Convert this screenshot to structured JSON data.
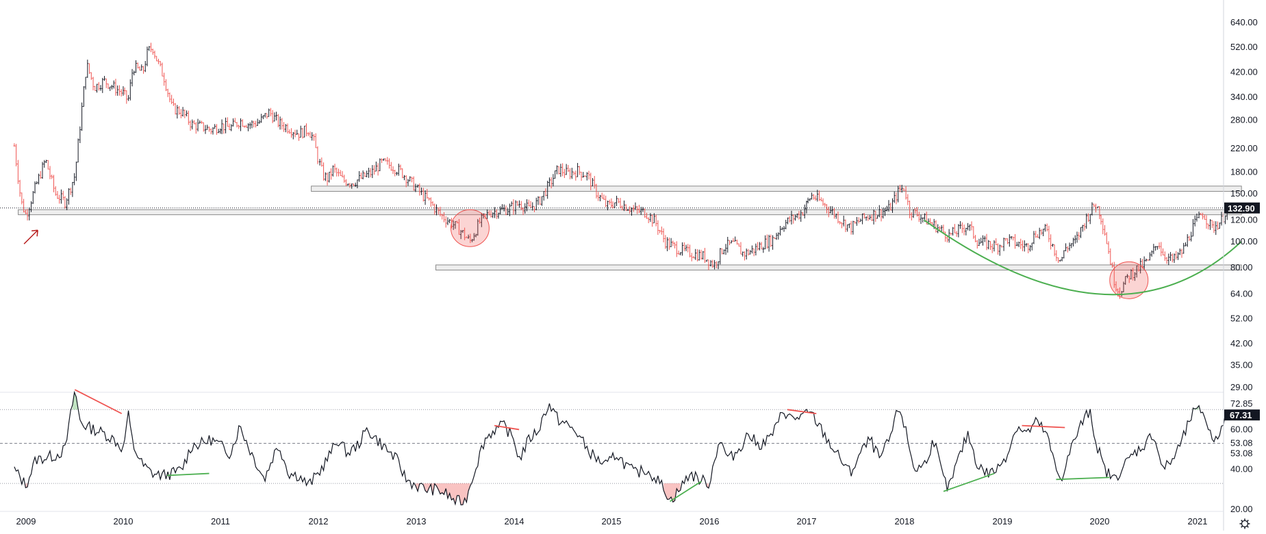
{
  "chart_data": [
    {
      "type": "candlestick",
      "panel": "price",
      "scale": "log",
      "x_labels": [
        "2009",
        "2010",
        "2011",
        "2012",
        "2013",
        "2014",
        "2015",
        "2016",
        "2017",
        "2018",
        "2019",
        "2020",
        "2021"
      ],
      "x_range": [
        2008.88,
        2021.45
      ],
      "y_ticks": [
        "640.00",
        "520.00",
        "420.00",
        "340.00",
        "280.00",
        "220.00",
        "180.00",
        "150.00",
        "120.00",
        "100.00",
        "80.00",
        "64.00",
        "52.00",
        "42.00",
        "35.00",
        "29.00"
      ],
      "ylim": [
        27,
        700
      ],
      "last_value": "132.90",
      "up_color": "#131722",
      "down_color": "#ef5350",
      "ohlc_anchor_points": [
        [
          2008.88,
          225
        ],
        [
          2008.95,
          140
        ],
        [
          2009.0,
          125
        ],
        [
          2009.1,
          160
        ],
        [
          2009.2,
          200
        ],
        [
          2009.3,
          150
        ],
        [
          2009.4,
          140
        ],
        [
          2009.5,
          175
        ],
        [
          2009.55,
          260
        ],
        [
          2009.62,
          450
        ],
        [
          2009.7,
          370
        ],
        [
          2009.8,
          390
        ],
        [
          2009.9,
          370
        ],
        [
          2010.0,
          350
        ],
        [
          2010.05,
          330
        ],
        [
          2010.1,
          440
        ],
        [
          2010.2,
          420
        ],
        [
          2010.25,
          500
        ],
        [
          2010.3,
          520
        ],
        [
          2010.35,
          460
        ],
        [
          2010.42,
          400
        ],
        [
          2010.5,
          310
        ],
        [
          2010.6,
          300
        ],
        [
          2010.7,
          270
        ],
        [
          2010.8,
          265
        ],
        [
          2010.9,
          258
        ],
        [
          2011.0,
          268
        ],
        [
          2011.1,
          262
        ],
        [
          2011.2,
          278
        ],
        [
          2011.3,
          270
        ],
        [
          2011.4,
          276
        ],
        [
          2011.5,
          300
        ],
        [
          2011.6,
          272
        ],
        [
          2011.7,
          262
        ],
        [
          2011.8,
          250
        ],
        [
          2011.9,
          258
        ],
        [
          2011.95,
          240
        ],
        [
          2012.0,
          200
        ],
        [
          2012.05,
          175
        ],
        [
          2012.1,
          170
        ],
        [
          2012.15,
          185
        ],
        [
          2012.25,
          168
        ],
        [
          2012.35,
          165
        ],
        [
          2012.45,
          172
        ],
        [
          2012.55,
          180
        ],
        [
          2012.65,
          195
        ],
        [
          2012.75,
          190
        ],
        [
          2012.85,
          180
        ],
        [
          2012.95,
          165
        ],
        [
          2013.05,
          150
        ],
        [
          2013.15,
          138
        ],
        [
          2013.25,
          125
        ],
        [
          2013.35,
          118
        ],
        [
          2013.45,
          110
        ],
        [
          2013.55,
          100
        ],
        [
          2013.65,
          118
        ],
        [
          2013.75,
          128
        ],
        [
          2013.85,
          130
        ],
        [
          2013.95,
          132
        ],
        [
          2014.05,
          138
        ],
        [
          2014.15,
          132
        ],
        [
          2014.25,
          140
        ],
        [
          2014.35,
          160
        ],
        [
          2014.45,
          185
        ],
        [
          2014.55,
          178
        ],
        [
          2014.65,
          182
        ],
        [
          2014.75,
          175
        ],
        [
          2014.85,
          150
        ],
        [
          2014.95,
          135
        ],
        [
          2015.05,
          140
        ],
        [
          2015.15,
          135
        ],
        [
          2015.25,
          130
        ],
        [
          2015.35,
          128
        ],
        [
          2015.45,
          118
        ],
        [
          2015.55,
          100
        ],
        [
          2015.65,
          95
        ],
        [
          2015.75,
          92
        ],
        [
          2015.85,
          90
        ],
        [
          2015.95,
          88
        ],
        [
          2016.05,
          82
        ],
        [
          2016.15,
          96
        ],
        [
          2016.25,
          98
        ],
        [
          2016.35,
          90
        ],
        [
          2016.45,
          93
        ],
        [
          2016.55,
          98
        ],
        [
          2016.65,
          102
        ],
        [
          2016.75,
          115
        ],
        [
          2016.85,
          122
        ],
        [
          2016.95,
          128
        ],
        [
          2017.05,
          148
        ],
        [
          2017.15,
          140
        ],
        [
          2017.25,
          130
        ],
        [
          2017.35,
          120
        ],
        [
          2017.45,
          112
        ],
        [
          2017.55,
          120
        ],
        [
          2017.65,
          125
        ],
        [
          2017.75,
          128
        ],
        [
          2017.85,
          132
        ],
        [
          2017.95,
          155
        ],
        [
          2018.0,
          158
        ],
        [
          2018.05,
          130
        ],
        [
          2018.15,
          125
        ],
        [
          2018.25,
          118
        ],
        [
          2018.35,
          112
        ],
        [
          2018.45,
          105
        ],
        [
          2018.55,
          110
        ],
        [
          2018.65,
          115
        ],
        [
          2018.75,
          100
        ],
        [
          2018.85,
          98
        ],
        [
          2018.95,
          96
        ],
        [
          2019.05,
          102
        ],
        [
          2019.15,
          98
        ],
        [
          2019.25,
          96
        ],
        [
          2019.35,
          108
        ],
        [
          2019.45,
          110
        ],
        [
          2019.55,
          90
        ],
        [
          2019.6,
          85
        ],
        [
          2019.65,
          95
        ],
        [
          2019.75,
          100
        ],
        [
          2019.85,
          120
        ],
        [
          2019.95,
          138
        ],
        [
          2020.0,
          128
        ],
        [
          2020.05,
          110
        ],
        [
          2020.15,
          72
        ],
        [
          2020.2,
          65
        ],
        [
          2020.3,
          75
        ],
        [
          2020.4,
          80
        ],
        [
          2020.5,
          85
        ],
        [
          2020.6,
          100
        ],
        [
          2020.65,
          90
        ],
        [
          2020.75,
          85
        ],
        [
          2020.85,
          92
        ],
        [
          2020.95,
          112
        ],
        [
          2021.05,
          128
        ],
        [
          2021.15,
          112
        ],
        [
          2021.25,
          120
        ],
        [
          2021.3,
          132.9
        ]
      ],
      "annotations": {
        "resistance_zones": [
          {
            "from": 2011.93,
            "to": 2021.45,
            "low": 153,
            "high": 160
          },
          {
            "from": 2008.92,
            "to": 2021.45,
            "low": 125.5,
            "high": 131
          },
          {
            "from": 2013.2,
            "to": 2021.45,
            "low": 78.5,
            "high": 82
          }
        ],
        "highlight_circles": [
          {
            "x": 2013.55,
            "y": 112
          },
          {
            "x": 2020.3,
            "y": 72
          }
        ],
        "arc": {
          "from": [
            2018.2,
            120
          ],
          "bottom": [
            2020.0,
            64
          ],
          "to": [
            2021.45,
            100
          ],
          "color": "#4caf50"
        },
        "arrow": {
          "at": [
            2009.05,
            118
          ],
          "color": "#b71c1c"
        }
      }
    },
    {
      "type": "line",
      "panel": "oscillator",
      "y_ticks": [
        "72.85",
        "72.85",
        "67.31",
        "60.00",
        "53.08",
        "53.08",
        "40.00",
        "20.00"
      ],
      "ylim": [
        17,
        80
      ],
      "last_value": "67.31",
      "reference_levels": [
        70,
        53.08,
        33
      ],
      "oscillator_anchor_points": [
        [
          2008.88,
          40
        ],
        [
          2009.0,
          32
        ],
        [
          2009.1,
          45
        ],
        [
          2009.3,
          47
        ],
        [
          2009.4,
          50
        ],
        [
          2009.5,
          80
        ],
        [
          2009.55,
          65
        ],
        [
          2009.6,
          62
        ],
        [
          2009.7,
          60
        ],
        [
          2009.8,
          58
        ],
        [
          2009.9,
          55
        ],
        [
          2010.0,
          50
        ],
        [
          2010.05,
          68
        ],
        [
          2010.1,
          52
        ],
        [
          2010.2,
          42
        ],
        [
          2010.3,
          38
        ],
        [
          2010.4,
          37
        ],
        [
          2010.5,
          38
        ],
        [
          2010.6,
          40
        ],
        [
          2010.7,
          52
        ],
        [
          2010.8,
          53
        ],
        [
          2010.9,
          55
        ],
        [
          2011.0,
          52
        ],
        [
          2011.1,
          48
        ],
        [
          2011.2,
          62
        ],
        [
          2011.3,
          50
        ],
        [
          2011.4,
          40
        ],
        [
          2011.45,
          35
        ],
        [
          2011.55,
          48
        ],
        [
          2011.6,
          52
        ],
        [
          2011.7,
          38
        ],
        [
          2011.8,
          37
        ],
        [
          2011.9,
          32
        ],
        [
          2012.0,
          38
        ],
        [
          2012.1,
          46
        ],
        [
          2012.2,
          55
        ],
        [
          2012.3,
          48
        ],
        [
          2012.4,
          52
        ],
        [
          2012.5,
          60
        ],
        [
          2012.6,
          55
        ],
        [
          2012.7,
          50
        ],
        [
          2012.8,
          45
        ],
        [
          2012.9,
          35
        ],
        [
          2013.0,
          32
        ],
        [
          2013.1,
          30
        ],
        [
          2013.2,
          30
        ],
        [
          2013.3,
          28
        ],
        [
          2013.4,
          24
        ],
        [
          2013.5,
          24
        ],
        [
          2013.6,
          40
        ],
        [
          2013.7,
          55
        ],
        [
          2013.8,
          60
        ],
        [
          2013.9,
          62
        ],
        [
          2014.0,
          55
        ],
        [
          2014.05,
          45
        ],
        [
          2014.15,
          55
        ],
        [
          2014.25,
          60
        ],
        [
          2014.35,
          73
        ],
        [
          2014.45,
          65
        ],
        [
          2014.55,
          62
        ],
        [
          2014.65,
          58
        ],
        [
          2014.75,
          50
        ],
        [
          2014.85,
          45
        ],
        [
          2014.95,
          42
        ],
        [
          2015.05,
          48
        ],
        [
          2015.15,
          42
        ],
        [
          2015.25,
          38
        ],
        [
          2015.35,
          40
        ],
        [
          2015.45,
          36
        ],
        [
          2015.55,
          30
        ],
        [
          2015.6,
          24
        ],
        [
          2015.7,
          30
        ],
        [
          2015.8,
          38
        ],
        [
          2015.9,
          35
        ],
        [
          2016.0,
          33
        ],
        [
          2016.1,
          55
        ],
        [
          2016.2,
          45
        ],
        [
          2016.3,
          50
        ],
        [
          2016.4,
          58
        ],
        [
          2016.5,
          52
        ],
        [
          2016.6,
          55
        ],
        [
          2016.7,
          62
        ],
        [
          2016.75,
          70
        ],
        [
          2016.85,
          65
        ],
        [
          2016.95,
          67
        ],
        [
          2017.05,
          68
        ],
        [
          2017.15,
          60
        ],
        [
          2017.25,
          52
        ],
        [
          2017.35,
          45
        ],
        [
          2017.45,
          38
        ],
        [
          2017.55,
          48
        ],
        [
          2017.65,
          55
        ],
        [
          2017.75,
          45
        ],
        [
          2017.85,
          55
        ],
        [
          2017.95,
          72
        ],
        [
          2018.0,
          62
        ],
        [
          2018.1,
          40
        ],
        [
          2018.2,
          42
        ],
        [
          2018.3,
          55
        ],
        [
          2018.4,
          35
        ],
        [
          2018.45,
          30
        ],
        [
          2018.55,
          45
        ],
        [
          2018.65,
          58
        ],
        [
          2018.75,
          42
        ],
        [
          2018.85,
          38
        ],
        [
          2018.95,
          40
        ],
        [
          2019.05,
          48
        ],
        [
          2019.15,
          62
        ],
        [
          2019.25,
          58
        ],
        [
          2019.35,
          64
        ],
        [
          2019.45,
          58
        ],
        [
          2019.55,
          40
        ],
        [
          2019.6,
          35
        ],
        [
          2019.7,
          50
        ],
        [
          2019.8,
          62
        ],
        [
          2019.9,
          70
        ],
        [
          2019.95,
          55
        ],
        [
          2020.05,
          40
        ],
        [
          2020.15,
          35
        ],
        [
          2020.25,
          42
        ],
        [
          2020.35,
          48
        ],
        [
          2020.45,
          52
        ],
        [
          2020.55,
          58
        ],
        [
          2020.65,
          40
        ],
        [
          2020.75,
          45
        ],
        [
          2020.85,
          55
        ],
        [
          2020.95,
          68
        ],
        [
          2021.05,
          70
        ],
        [
          2021.15,
          55
        ],
        [
          2021.25,
          60
        ],
        [
          2021.3,
          67.31
        ]
      ],
      "divergence_lines": [
        {
          "from": [
            2009.5,
            80
          ],
          "to": [
            2009.98,
            68
          ],
          "color": "#ef5350"
        },
        {
          "from": [
            2010.45,
            37
          ],
          "to": [
            2010.88,
            38
          ],
          "color": "#4caf50"
        },
        {
          "from": [
            2013.8,
            62
          ],
          "to": [
            2014.05,
            60
          ],
          "color": "#ef5350"
        },
        {
          "from": [
            2015.6,
            24
          ],
          "to": [
            2015.92,
            34
          ],
          "color": "#4caf50"
        },
        {
          "from": [
            2016.8,
            70
          ],
          "to": [
            2017.1,
            68
          ],
          "color": "#ef5350"
        },
        {
          "from": [
            2018.4,
            29
          ],
          "to": [
            2018.92,
            38
          ],
          "color": "#4caf50"
        },
        {
          "from": [
            2019.2,
            62
          ],
          "to": [
            2019.64,
            61
          ],
          "color": "#ef5350"
        },
        {
          "from": [
            2019.55,
            35
          ],
          "to": [
            2020.1,
            36
          ],
          "color": "#4caf50"
        }
      ]
    }
  ],
  "time_axis": {
    "labels": [
      "2009",
      "2010",
      "2011",
      "2012",
      "2013",
      "2014",
      "2015",
      "2016",
      "2017",
      "2018",
      "2019",
      "2020",
      "2021"
    ]
  },
  "icons": {
    "settings": "gear-icon"
  }
}
